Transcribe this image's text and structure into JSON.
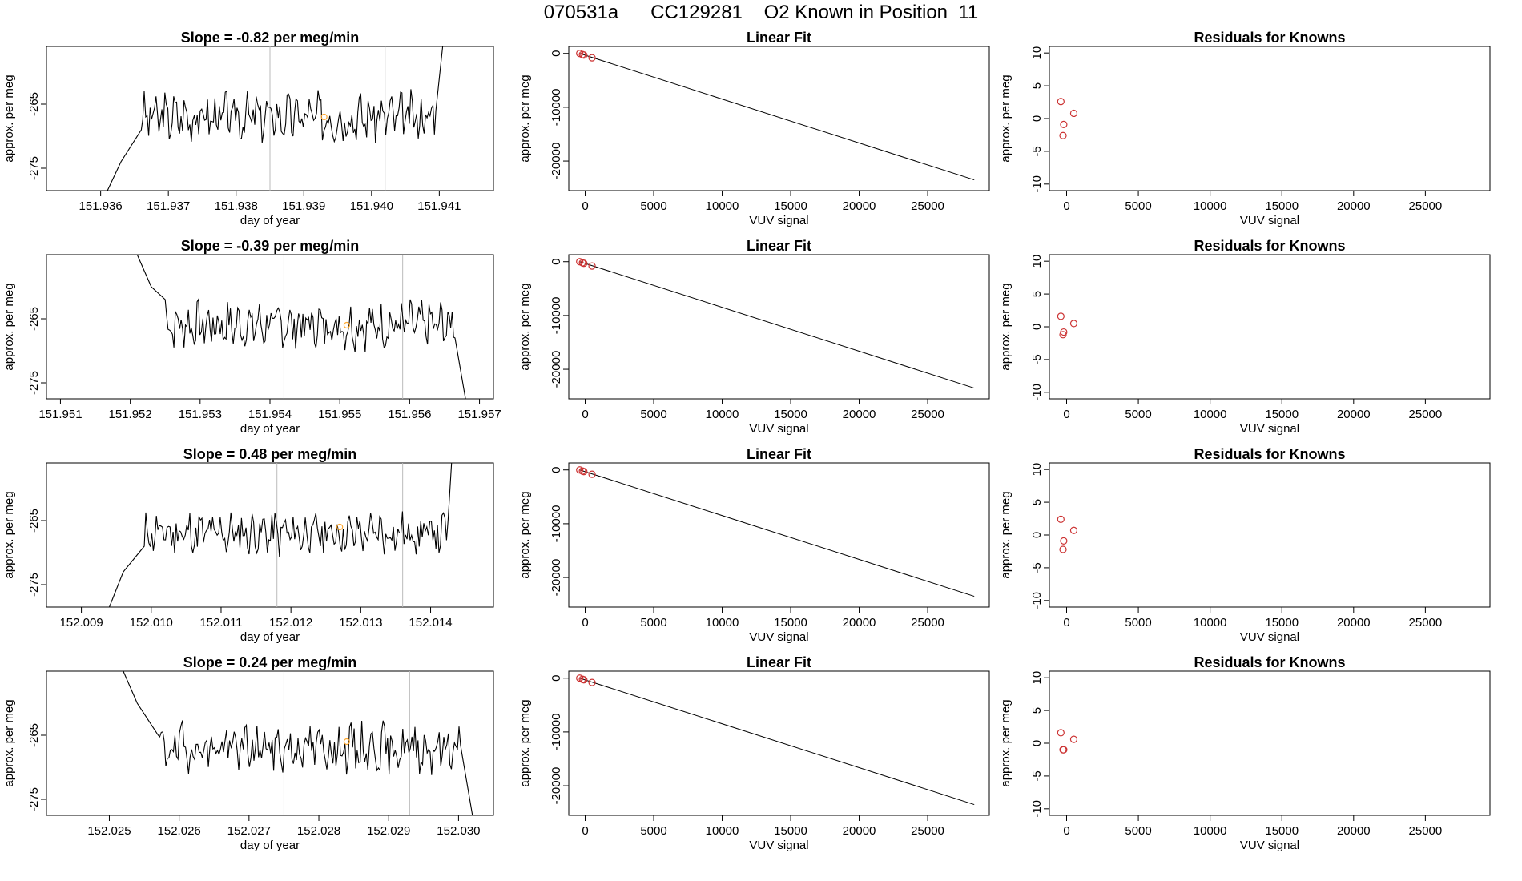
{
  "figure_title": "070531a      CC129281    O2 Known in Position  11",
  "colors": {
    "trace": "#000000",
    "frame": "#000000",
    "vline": "#bbbbbb",
    "point": "#cc3333",
    "highlight": "#ffaa33"
  },
  "chart_data": [
    {
      "type": "line",
      "title": "Slope =  -0.82  per meg/min",
      "xlabel": "day of year",
      "ylabel": "approx. per meg",
      "xlim": [
        151.9352,
        151.9418
      ],
      "ylim": [
        -278.5,
        -256
      ],
      "xticks": [
        151.936,
        151.937,
        151.938,
        151.939,
        151.94,
        151.941
      ],
      "xticklabels": [
        "151.936",
        "151.937",
        "151.938",
        "151.939",
        "151.940",
        "151.941"
      ],
      "yticks": [
        -275,
        -265
      ],
      "yticklabels": [
        "-275",
        "-265"
      ],
      "vlines": [
        151.9385,
        151.9402
      ],
      "highlight_point": {
        "x": 151.9393,
        "y": -267
      },
      "trace": {
        "x_start": 151.9361,
        "x_end": 151.941,
        "baseline": -267,
        "amplitude": 2.6,
        "seed": 3,
        "pre": [
          [
            151.9361,
            -278.5
          ],
          [
            151.9363,
            -274
          ],
          [
            151.9366,
            -269
          ]
        ],
        "post": [
          [
            151.94095,
            -266
          ],
          [
            151.94105,
            -256
          ]
        ]
      }
    },
    {
      "type": "scatter",
      "title": "Linear Fit",
      "xlabel": "VUV signal",
      "ylabel": "approx. per meg",
      "xlim": [
        -1200,
        29500
      ],
      "ylim": [
        -25500,
        1300
      ],
      "xticks": [
        0,
        5000,
        10000,
        15000,
        20000,
        25000
      ],
      "xticklabels": [
        "0",
        "5000",
        "10000",
        "15000",
        "20000",
        "25000"
      ],
      "yticks": [
        -20000,
        -10000,
        0
      ],
      "yticklabels": [
        "-20000",
        "-10000",
        "0"
      ],
      "points": {
        "x": [
          -400,
          -200,
          -100,
          500
        ],
        "y": [
          0,
          -200,
          -300,
          -800
        ]
      },
      "fit_line": {
        "x": [
          -400,
          28400
        ],
        "y": [
          0,
          -23500
        ]
      }
    },
    {
      "type": "scatter",
      "title": "Residuals for Knowns",
      "xlabel": "VUV signal",
      "ylabel": "approx. per meg",
      "xlim": [
        -1200,
        29500
      ],
      "ylim": [
        -11,
        11
      ],
      "xticks": [
        0,
        5000,
        10000,
        15000,
        20000,
        25000
      ],
      "xticklabels": [
        "0",
        "5000",
        "10000",
        "15000",
        "20000",
        "25000"
      ],
      "yticks": [
        -10,
        -5,
        0,
        5,
        10
      ],
      "yticklabels": [
        "-10",
        "-5",
        "0",
        "5",
        "10"
      ],
      "points": {
        "x": [
          -400,
          -200,
          -250,
          500
        ],
        "y": [
          2.6,
          -0.9,
          -2.6,
          0.8
        ]
      }
    },
    {
      "type": "line",
      "title": "Slope =  -0.39  per meg/min",
      "xlabel": "day of year",
      "ylabel": "approx. per meg",
      "xlim": [
        151.9508,
        151.9572
      ],
      "ylim": [
        -277.5,
        -255
      ],
      "xticks": [
        151.951,
        151.952,
        151.953,
        151.954,
        151.955,
        151.956,
        151.957
      ],
      "xticklabels": [
        "151.951",
        "151.952",
        "151.953",
        "151.954",
        "151.955",
        "151.956",
        "151.957"
      ],
      "yticks": [
        -275,
        -265
      ],
      "yticklabels": [
        "-275",
        "-265"
      ],
      "vlines": [
        151.9542,
        151.9559
      ],
      "highlight_point": {
        "x": 151.9551,
        "y": -266
      },
      "trace": {
        "x_start": 151.9521,
        "x_end": 151.9568,
        "baseline": -266,
        "amplitude": 2.5,
        "seed": 7,
        "pre": [
          [
            151.9521,
            -255
          ],
          [
            151.9523,
            -260
          ],
          [
            151.9525,
            -262
          ]
        ],
        "post": [
          [
            151.95665,
            -268
          ],
          [
            151.9568,
            -277.5
          ]
        ]
      }
    },
    {
      "type": "scatter",
      "title": "Linear Fit",
      "xlabel": "VUV signal",
      "ylabel": "approx. per meg",
      "xlim": [
        -1200,
        29500
      ],
      "ylim": [
        -25500,
        1300
      ],
      "xticks": [
        0,
        5000,
        10000,
        15000,
        20000,
        25000
      ],
      "xticklabels": [
        "0",
        "5000",
        "10000",
        "15000",
        "20000",
        "25000"
      ],
      "yticks": [
        -20000,
        -10000,
        0
      ],
      "yticklabels": [
        "-20000",
        "-10000",
        "0"
      ],
      "points": {
        "x": [
          -400,
          -200,
          -100,
          500
        ],
        "y": [
          0,
          -200,
          -300,
          -800
        ]
      },
      "fit_line": {
        "x": [
          -400,
          28400
        ],
        "y": [
          0,
          -23500
        ]
      }
    },
    {
      "type": "scatter",
      "title": "Residuals for Knowns",
      "xlabel": "VUV signal",
      "ylabel": "approx. per meg",
      "xlim": [
        -1200,
        29500
      ],
      "ylim": [
        -11,
        11
      ],
      "xticks": [
        0,
        5000,
        10000,
        15000,
        20000,
        25000
      ],
      "xticklabels": [
        "0",
        "5000",
        "10000",
        "15000",
        "20000",
        "25000"
      ],
      "yticks": [
        -10,
        -5,
        0,
        5,
        10
      ],
      "yticklabels": [
        "-10",
        "-5",
        "0",
        "5",
        "10"
      ],
      "points": {
        "x": [
          -400,
          -200,
          -250,
          500
        ],
        "y": [
          1.6,
          -0.8,
          -1.2,
          0.5
        ]
      }
    },
    {
      "type": "line",
      "title": "Slope =  0.48  per meg/min",
      "xlabel": "day of year",
      "ylabel": "approx. per meg",
      "xlim": [
        152.0085,
        152.0149
      ],
      "ylim": [
        -278.5,
        -256
      ],
      "xticks": [
        152.009,
        152.01,
        152.011,
        152.012,
        152.013,
        152.014
      ],
      "xticklabels": [
        "152.009",
        "152.010",
        "152.011",
        "152.012",
        "152.013",
        "152.014"
      ],
      "yticks": [
        -275,
        -265
      ],
      "yticklabels": [
        "-275",
        "-265"
      ],
      "vlines": [
        152.0118,
        152.0136
      ],
      "highlight_point": {
        "x": 152.0127,
        "y": -266
      },
      "trace": {
        "x_start": 152.0094,
        "x_end": 152.0143,
        "baseline": -267,
        "amplitude": 2.4,
        "seed": 11,
        "pre": [
          [
            152.0094,
            -278.5
          ],
          [
            152.0096,
            -273
          ],
          [
            152.0099,
            -269
          ]
        ],
        "post": [
          [
            152.01425,
            -265
          ],
          [
            152.0143,
            -256
          ]
        ]
      }
    },
    {
      "type": "scatter",
      "title": "Linear Fit",
      "xlabel": "VUV signal",
      "ylabel": "approx. per meg",
      "xlim": [
        -1200,
        29500
      ],
      "ylim": [
        -25500,
        1300
      ],
      "xticks": [
        0,
        5000,
        10000,
        15000,
        20000,
        25000
      ],
      "xticklabels": [
        "0",
        "5000",
        "10000",
        "15000",
        "20000",
        "25000"
      ],
      "yticks": [
        -20000,
        -10000,
        0
      ],
      "yticklabels": [
        "-20000",
        "-10000",
        "0"
      ],
      "points": {
        "x": [
          -400,
          -200,
          -100,
          500
        ],
        "y": [
          0,
          -200,
          -300,
          -800
        ]
      },
      "fit_line": {
        "x": [
          -400,
          28400
        ],
        "y": [
          0,
          -23500
        ]
      }
    },
    {
      "type": "scatter",
      "title": "Residuals for Knowns",
      "xlabel": "VUV signal",
      "ylabel": "approx. per meg",
      "xlim": [
        -1200,
        29500
      ],
      "ylim": [
        -11,
        11
      ],
      "xticks": [
        0,
        5000,
        10000,
        15000,
        20000,
        25000
      ],
      "xticklabels": [
        "0",
        "5000",
        "10000",
        "15000",
        "20000",
        "25000"
      ],
      "yticks": [
        -10,
        -5,
        0,
        5,
        10
      ],
      "yticklabels": [
        "-10",
        "-5",
        "0",
        "5",
        "10"
      ],
      "points": {
        "x": [
          -400,
          -200,
          -250,
          500
        ],
        "y": [
          2.4,
          -0.9,
          -2.2,
          0.7
        ]
      }
    },
    {
      "type": "line",
      "title": "Slope =  0.24  per meg/min",
      "xlabel": "day of year",
      "ylabel": "approx. per meg",
      "xlim": [
        152.0241,
        152.0305
      ],
      "ylim": [
        -277.5,
        -255
      ],
      "xticks": [
        152.025,
        152.026,
        152.027,
        152.028,
        152.029,
        152.03
      ],
      "xticklabels": [
        "152.025",
        "152.026",
        "152.027",
        "152.028",
        "152.029",
        "152.030"
      ],
      "yticks": [
        -275,
        -265
      ],
      "yticklabels": [
        "-275",
        "-265"
      ],
      "vlines": [
        152.0275,
        152.0293
      ],
      "highlight_point": {
        "x": 152.0284,
        "y": -266
      },
      "trace": {
        "x_start": 152.0252,
        "x_end": 152.0302,
        "baseline": -267,
        "amplitude": 2.6,
        "seed": 19,
        "pre": [
          [
            152.0252,
            -255
          ],
          [
            152.0254,
            -260
          ],
          [
            152.0257,
            -265
          ]
        ],
        "post": [
          [
            152.03005,
            -268
          ],
          [
            152.0302,
            -277.5
          ]
        ]
      }
    },
    {
      "type": "scatter",
      "title": "Linear Fit",
      "xlabel": "VUV signal",
      "ylabel": "approx. per meg",
      "xlim": [
        -1200,
        29500
      ],
      "ylim": [
        -25500,
        1300
      ],
      "xticks": [
        0,
        5000,
        10000,
        15000,
        20000,
        25000
      ],
      "xticklabels": [
        "0",
        "5000",
        "10000",
        "15000",
        "20000",
        "25000"
      ],
      "yticks": [
        -20000,
        -10000,
        0
      ],
      "yticklabels": [
        "-20000",
        "-10000",
        "0"
      ],
      "points": {
        "x": [
          -400,
          -200,
          -100,
          500
        ],
        "y": [
          0,
          -200,
          -300,
          -800
        ]
      },
      "fit_line": {
        "x": [
          -400,
          28400
        ],
        "y": [
          0,
          -23500
        ]
      }
    },
    {
      "type": "scatter",
      "title": "Residuals for Knowns",
      "xlabel": "VUV signal",
      "ylabel": "approx. per meg",
      "xlim": [
        -1200,
        29500
      ],
      "ylim": [
        -11,
        11
      ],
      "xticks": [
        0,
        5000,
        10000,
        15000,
        20000,
        25000
      ],
      "xticklabels": [
        "0",
        "5000",
        "10000",
        "15000",
        "20000",
        "25000"
      ],
      "yticks": [
        -10,
        -5,
        0,
        5,
        10
      ],
      "yticklabels": [
        "-10",
        "-5",
        "0",
        "5",
        "10"
      ],
      "points": {
        "x": [
          -400,
          -250,
          -200,
          500
        ],
        "y": [
          1.6,
          -1.0,
          -1.0,
          0.6
        ]
      }
    }
  ]
}
